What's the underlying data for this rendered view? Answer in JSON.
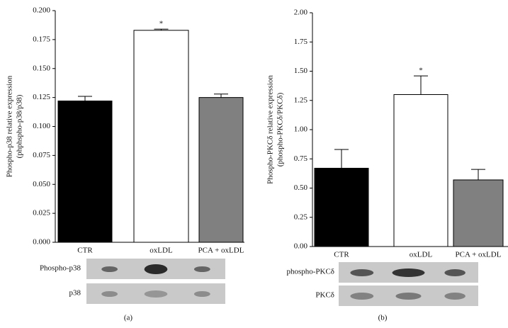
{
  "chart_data": [
    {
      "type": "bar",
      "ylabel": [
        "Phospho-p38 relative expression",
        "(phphspho-p38/p38)"
      ],
      "categories": [
        "CTR",
        "oxLDL",
        "PCA + oxLDL"
      ],
      "values": [
        0.122,
        0.183,
        0.125
      ],
      "errors": [
        0.004,
        0.001,
        0.003
      ],
      "colors": [
        "#000000",
        "#ffffff",
        "#808080"
      ],
      "annotations": [
        {
          "text": "*",
          "category": "oxLDL"
        }
      ],
      "ylim": [
        0,
        0.2
      ],
      "yticks": [
        {
          "value": 0,
          "label": "0.000"
        },
        {
          "value": 0.025,
          "label": "0.025"
        },
        {
          "value": 0.05,
          "label": "0.050"
        },
        {
          "value": 0.075,
          "label": "0.075"
        },
        {
          "value": 0.1,
          "label": "0.100"
        },
        {
          "value": 0.125,
          "label": "0.125"
        },
        {
          "value": 0.15,
          "label": "0.150"
        },
        {
          "value": 0.175,
          "label": "0.175"
        },
        {
          "value": 0.2,
          "label": "0.200"
        }
      ],
      "blot_labels": [
        "Phospho-p38",
        "p38"
      ],
      "panel_label": "(a)"
    },
    {
      "type": "bar",
      "ylabel": [
        "Phospho-PKCδ relative expression",
        "(phospho-PKCδ/PKCδ)"
      ],
      "categories": [
        "CTR",
        "oxLDL",
        "PCA + oxLDL"
      ],
      "values": [
        0.67,
        1.3,
        0.57
      ],
      "errors": [
        0.16,
        0.16,
        0.09
      ],
      "colors": [
        "#000000",
        "#ffffff",
        "#808080"
      ],
      "annotations": [
        {
          "text": "*",
          "category": "oxLDL"
        }
      ],
      "ylim": [
        0,
        2
      ],
      "yticks": [
        {
          "value": 0,
          "label": "0.00"
        },
        {
          "value": 0.25,
          "label": "0.25"
        },
        {
          "value": 0.5,
          "label": "0.50"
        },
        {
          "value": 0.75,
          "label": "0.75"
        },
        {
          "value": 1,
          "label": "1.00"
        },
        {
          "value": 1.25,
          "label": "1.25"
        },
        {
          "value": 1.5,
          "label": "1.50"
        },
        {
          "value": 1.75,
          "label": "1.75"
        },
        {
          "value": 2,
          "label": "2.00"
        }
      ],
      "blot_labels": [
        "phospho-PKCδ",
        "PKCδ"
      ],
      "panel_label": "(b)"
    }
  ]
}
